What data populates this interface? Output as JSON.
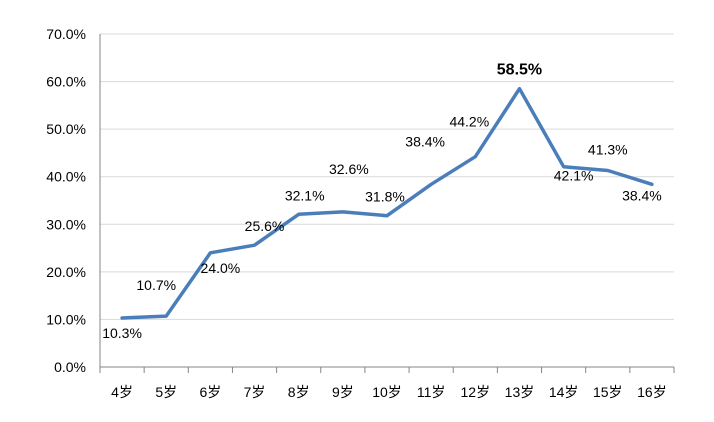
{
  "chart_data": {
    "type": "line",
    "title": "",
    "xlabel": "",
    "ylabel": "",
    "categories": [
      "4岁",
      "5岁",
      "6岁",
      "7岁",
      "8岁",
      "9岁",
      "10岁",
      "11岁",
      "12岁",
      "13岁",
      "14岁",
      "15岁",
      "16岁"
    ],
    "series": [
      {
        "values": [
          10.3,
          10.7,
          24.0,
          25.6,
          32.1,
          32.6,
          31.8,
          38.4,
          44.2,
          58.5,
          42.1,
          41.3,
          38.4
        ],
        "data_labels": [
          "10.3%",
          "10.7%",
          "24.0%",
          "25.6%",
          "32.1%",
          "32.6%",
          "31.8%",
          "38.4%",
          "44.2%",
          "58.5%",
          "42.1%",
          "41.3%",
          "38.4%"
        ],
        "highlight_label": "58.5%",
        "color": "#4a7ebb"
      }
    ],
    "y_ticks": [
      "0.0%",
      "10.0%",
      "20.0%",
      "30.0%",
      "40.0%",
      "50.0%",
      "60.0%",
      "70.0%"
    ],
    "ylim": [
      0,
      70
    ],
    "y_unit": "%",
    "grid": true,
    "legend": "none"
  }
}
